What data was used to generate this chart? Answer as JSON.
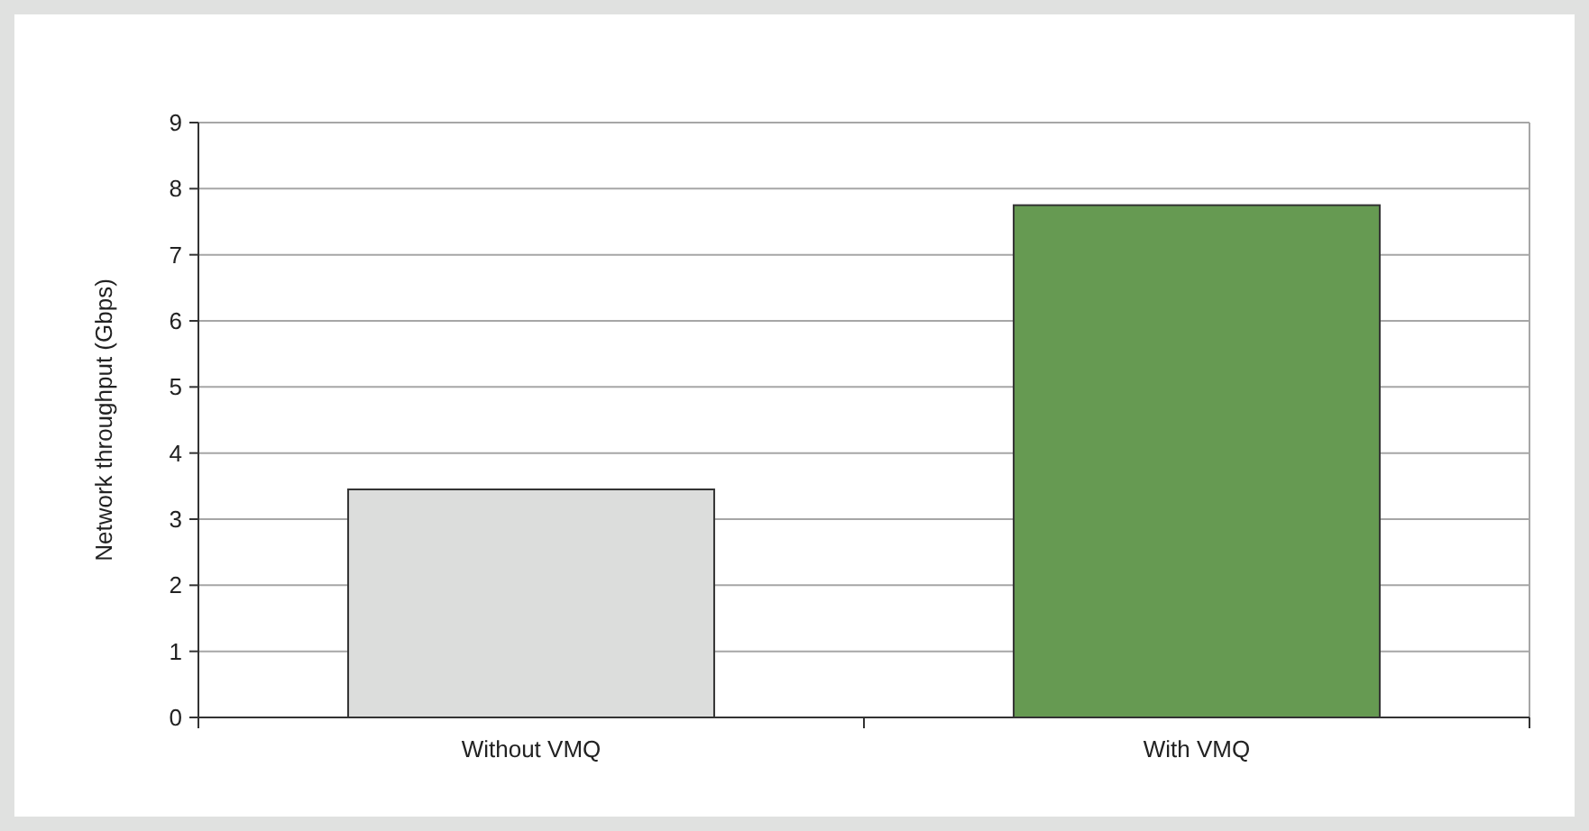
{
  "chart_data": {
    "type": "bar",
    "ylabel": "Network throughput (Gbps)",
    "categories": [
      "Without VMQ",
      "With VMQ"
    ],
    "values": [
      3.45,
      7.75
    ],
    "colors": [
      "#dcdddc",
      "#669a52"
    ],
    "ylim": [
      0,
      9
    ],
    "yticks": [
      0,
      1,
      2,
      3,
      4,
      5,
      6,
      7,
      8,
      9
    ],
    "grid": "y"
  }
}
